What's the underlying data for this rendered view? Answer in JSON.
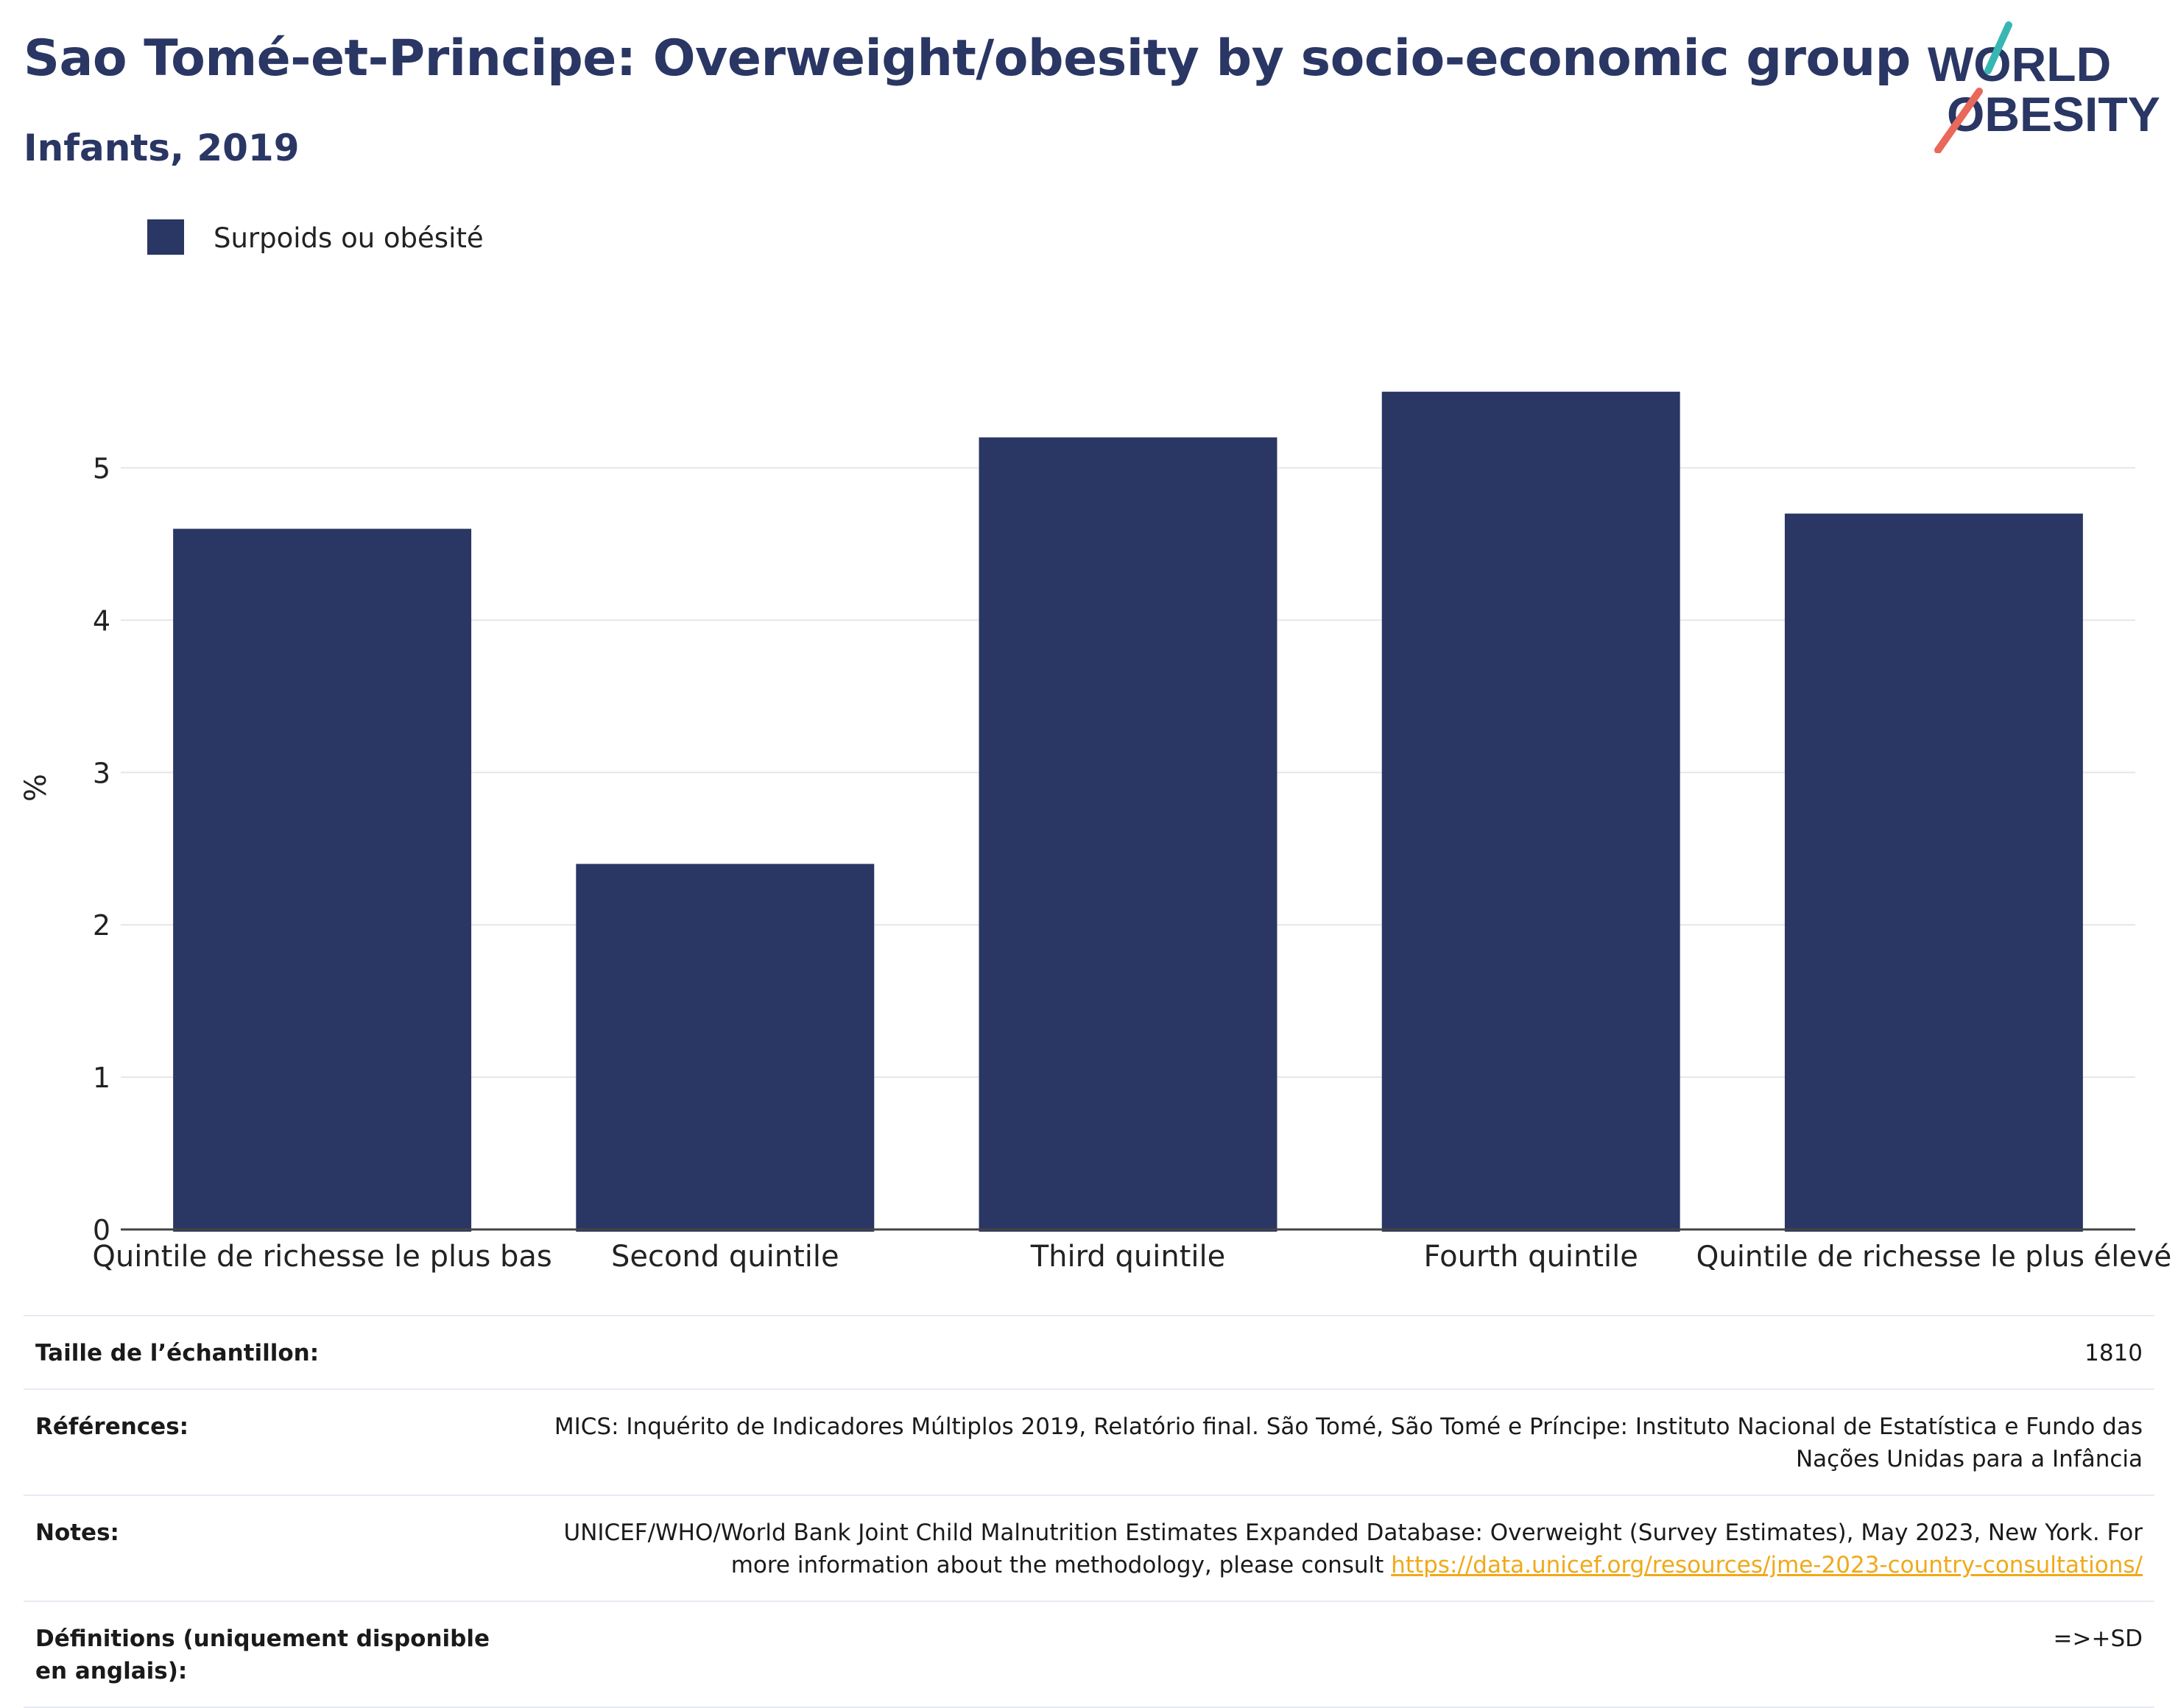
{
  "header": {
    "title": "Sao Tomé-et-Principe: Overweight/obesity by socio-economic group",
    "subtitle": "Infants, 2019"
  },
  "logo": {
    "line1": "WORLD",
    "line2": "OBESITY",
    "colors": {
      "text": "#2a3663",
      "slash_teal": "#38b7b2",
      "slash_coral": "#e8685a"
    }
  },
  "colors": {
    "bar": "#2a3663",
    "grid": "#e6e6e6",
    "axis": "#444444",
    "link": "#f0a919"
  },
  "chart_data": {
    "type": "bar",
    "title": "Sao Tomé-et-Principe: Overweight/obesity by socio-economic group",
    "subtitle": "Infants, 2019",
    "categories": [
      "Quintile de richesse le plus bas",
      "Second quintile",
      "Third quintile",
      "Fourth quintile",
      "Quintile de richesse le plus élevé"
    ],
    "series": [
      {
        "name": "Surpoids ou obésité",
        "values": [
          4.6,
          2.4,
          5.2,
          5.5,
          4.7
        ]
      }
    ],
    "xlabel": "",
    "ylabel": "%",
    "ylim": [
      0,
      5.8
    ],
    "yticks": [
      0,
      1,
      2,
      3,
      4,
      5
    ],
    "grid": true,
    "legend_position": "top-left"
  },
  "meta": {
    "rows": [
      {
        "label": "Taille de l’échantillon:",
        "value": "1810"
      },
      {
        "label": "Références:",
        "value": "MICS: Inquérito de Indicadores Múltiplos 2019, Relatório final. São Tomé, São Tomé e Príncipe: Instituto Nacional de Estatística e Fundo das Nações Unidas para a Infância"
      },
      {
        "label": "Notes:",
        "value": "UNICEF/WHO/World Bank Joint Child Malnutrition Estimates Expanded Database: Overweight (Survey Estimates), May 2023, New York. For more information about the methodology, please consult ",
        "link": "https://data.unicef.org/resources/jme-2023-country-consultations/"
      },
      {
        "label": "Définitions (uniquement disponible en anglais):",
        "value": "=>+SD"
      }
    ]
  }
}
